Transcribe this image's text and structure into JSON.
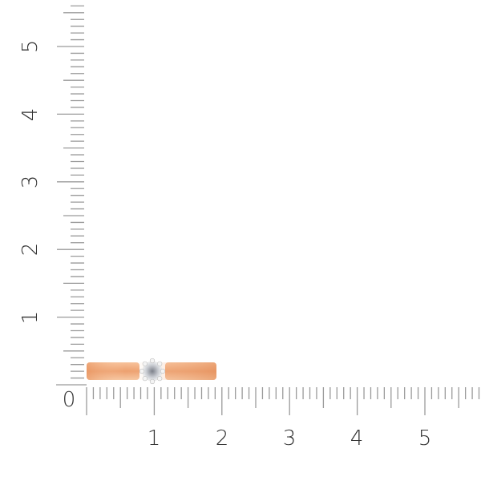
{
  "ruler": {
    "unit_ticks_per_label": 10,
    "origin_label": "0",
    "x_labels": [
      "1",
      "2",
      "3",
      "4",
      "5"
    ],
    "y_labels": [
      "1",
      "2",
      "3",
      "4",
      "5"
    ],
    "tick_color": "#9a9a9a"
  },
  "ring": {
    "metal_color": "#f0a87a",
    "stone_color": "#c9ccd2",
    "prong_color": "#f4f4f4"
  }
}
